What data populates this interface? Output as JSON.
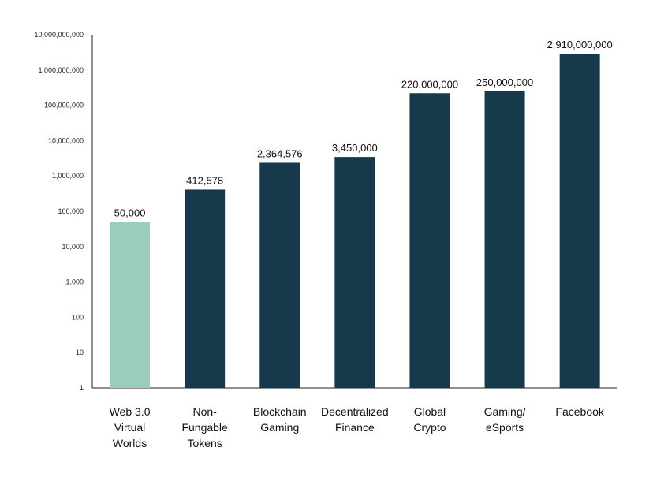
{
  "chart_data": {
    "type": "bar",
    "scale": "log",
    "categories": [
      [
        "Web 3.0",
        "Virtual",
        "Worlds"
      ],
      [
        "Non-",
        "Fungable",
        "Tokens"
      ],
      [
        "Blockchain",
        "Gaming"
      ],
      [
        "Decentralized",
        "Finance"
      ],
      [
        "Global",
        "Crypto"
      ],
      [
        "Gaming/",
        "eSports"
      ],
      [
        "Facebook"
      ]
    ],
    "values": [
      50000,
      412578,
      2364576,
      3450000,
      220000000,
      250000000,
      2910000000
    ],
    "value_labels": [
      "50,000",
      "412,578",
      "2,364,576",
      "3,450,000",
      "220,000,000",
      "250,000,000",
      "2,910,000,000"
    ],
    "bar_colors": [
      "#9BCDBE",
      "#163A4B",
      "#163A4B",
      "#163A4B",
      "#163A4B",
      "#163A4B",
      "#163A4B"
    ],
    "ylim": [
      1,
      10000000000
    ],
    "yticks": [
      "1",
      "10",
      "100",
      "1,000",
      "10,000",
      "100,000",
      "1,000,000",
      "10,000,000",
      "100,000,000",
      "1,000,000,000",
      "10,000,000,000"
    ],
    "title": "",
    "xlabel": "",
    "ylabel": ""
  }
}
